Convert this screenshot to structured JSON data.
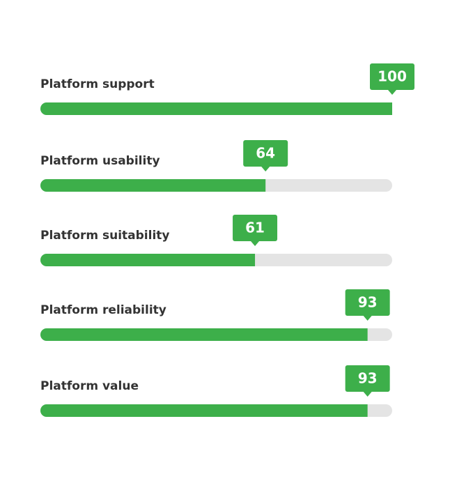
{
  "chart_data": {
    "type": "bar",
    "orientation": "horizontal",
    "categories": [
      "Platform support",
      "Platform usability",
      "Platform suitability",
      "Platform reliability",
      "Platform value"
    ],
    "values": [
      100,
      64,
      61,
      93,
      93
    ],
    "xlim": [
      0,
      100
    ],
    "color": "#3daf4a",
    "track_color": "#e4e4e4"
  }
}
